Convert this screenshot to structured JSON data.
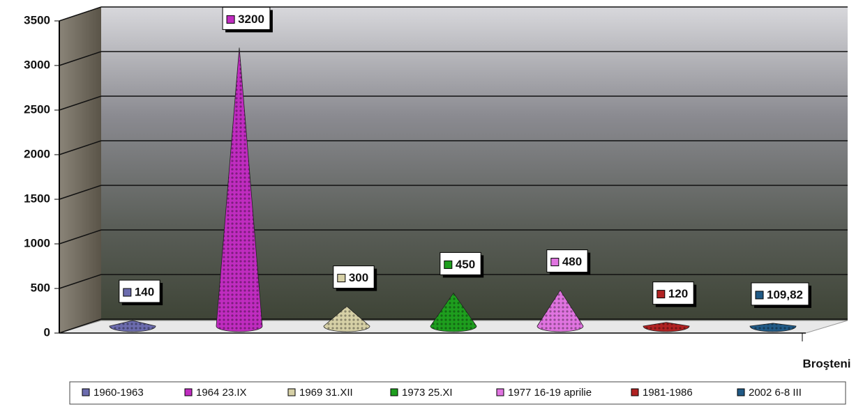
{
  "chart_data": {
    "type": "cone",
    "categories": [
      "Broşteni"
    ],
    "series": [
      {
        "name": "1960-1963",
        "color": "#6c6cae",
        "values": [
          140
        ],
        "value_labels": [
          "140"
        ]
      },
      {
        "name": "1964 23.IX",
        "color": "#c02cc0",
        "values": [
          3200
        ],
        "value_labels": [
          "3200"
        ]
      },
      {
        "name": "1969 31.XII",
        "color": "#d6d0a6",
        "values": [
          300
        ],
        "value_labels": [
          "300"
        ]
      },
      {
        "name": "1973 25.XI",
        "color": "#1e9e1e",
        "values": [
          450
        ],
        "value_labels": [
          "450"
        ]
      },
      {
        "name": "1977 16-19 aprilie",
        "color": "#e074e0",
        "values": [
          480
        ],
        "value_labels": [
          "480"
        ]
      },
      {
        "name": "1981-1986",
        "color": "#b02222",
        "values": [
          120
        ],
        "value_labels": [
          "120"
        ]
      },
      {
        "name": "2002 6-8 III",
        "color": "#205a86",
        "values": [
          109.82
        ],
        "value_labels": [
          "109,82"
        ]
      }
    ],
    "ylim": [
      0,
      3500
    ],
    "yticks": [
      0,
      500,
      1000,
      1500,
      2000,
      2500,
      3000,
      3500
    ],
    "grid": true
  }
}
